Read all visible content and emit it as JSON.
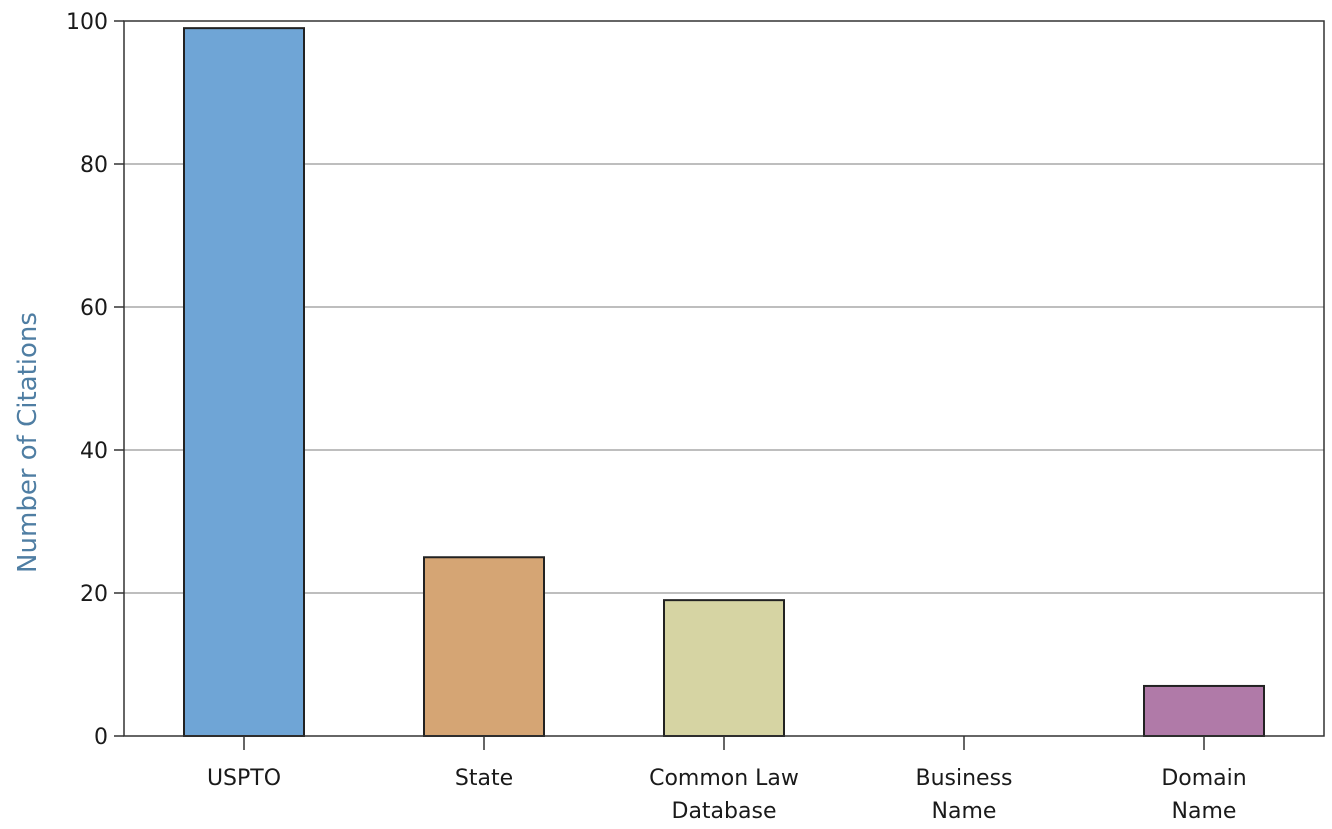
{
  "chart_data": {
    "type": "bar",
    "categories": [
      "USPTO",
      "State",
      "Common Law\nDatabase",
      "Business\nName",
      "Domain\nName"
    ],
    "values": [
      99,
      25,
      19,
      0,
      7
    ],
    "colors": [
      "#6fa5d6",
      "#d5a574",
      "#d6d4a3",
      "#c0c0c0",
      "#b07aa8"
    ],
    "title": "",
    "xlabel": "",
    "ylabel": "Number of Citations",
    "ylim": [
      0,
      100
    ],
    "yticks": [
      0,
      20,
      40,
      60,
      80,
      100
    ],
    "grid": true,
    "legend": "none"
  }
}
